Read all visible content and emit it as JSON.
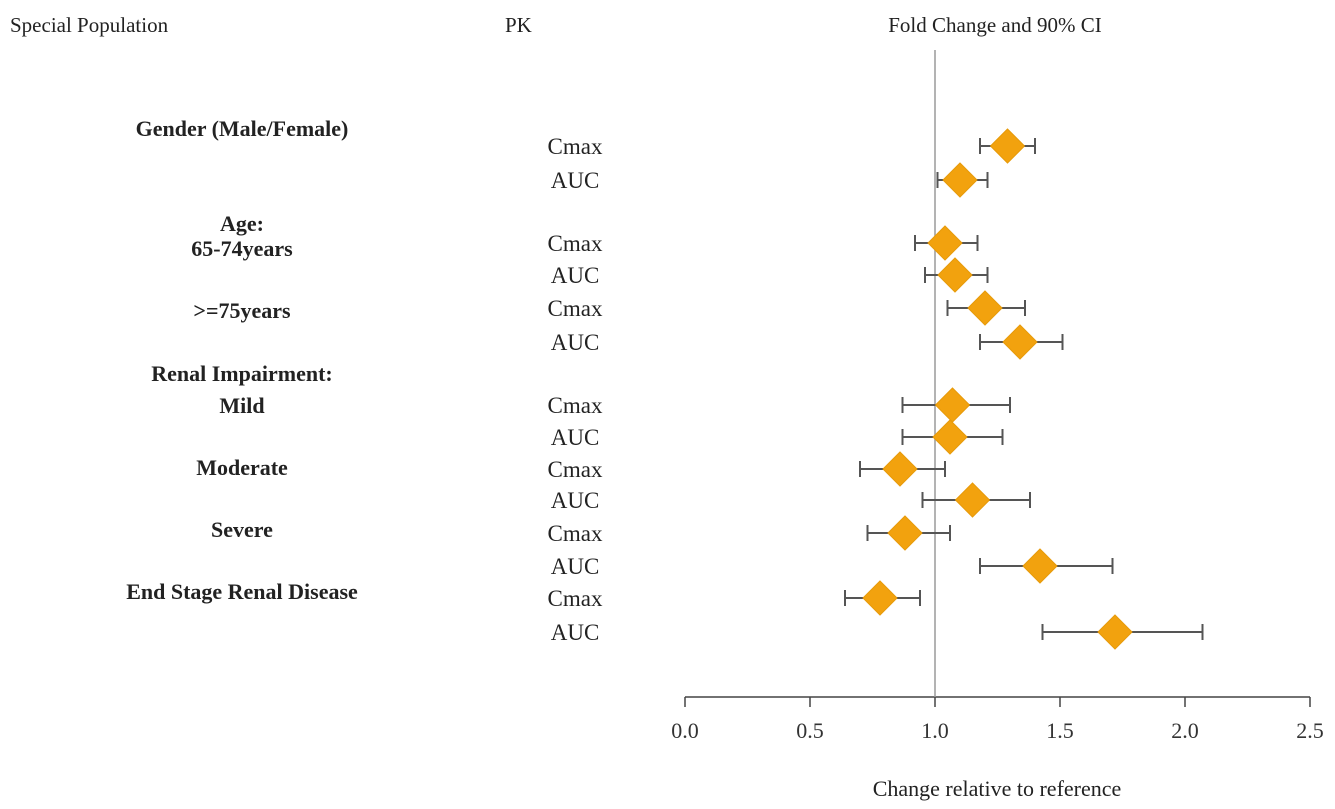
{
  "chart_data": {
    "type": "forest",
    "headers": {
      "group": "Special Population",
      "pk": "PK",
      "ci": "Fold Change and 90% CI"
    },
    "xlabel": "Change relative to reference",
    "xlim": [
      0.0,
      2.5
    ],
    "xticks": [
      "0.0",
      "0.5",
      "1.0",
      "1.5",
      "2.0",
      "2.5"
    ],
    "reference_line": 1.0,
    "marker_color": "#F2A20E",
    "groups": [
      {
        "label": "Gender (Male/Female)"
      },
      {
        "label": "Age:"
      },
      {
        "label": "65-74years"
      },
      {
        "label": ">=75years"
      },
      {
        "label": "Renal Impairment:"
      },
      {
        "label": "Mild"
      },
      {
        "label": "Moderate"
      },
      {
        "label": "Severe"
      },
      {
        "label": "End Stage Renal Disease"
      }
    ],
    "rows": [
      {
        "pk": "Cmax",
        "estimate": 1.29,
        "lower": 1.18,
        "upper": 1.4
      },
      {
        "pk": "AUC",
        "estimate": 1.1,
        "lower": 1.01,
        "upper": 1.21
      },
      {
        "pk": "Cmax",
        "estimate": 1.04,
        "lower": 0.92,
        "upper": 1.17
      },
      {
        "pk": "AUC",
        "estimate": 1.08,
        "lower": 0.96,
        "upper": 1.21
      },
      {
        "pk": "Cmax",
        "estimate": 1.2,
        "lower": 1.05,
        "upper": 1.36
      },
      {
        "pk": "AUC",
        "estimate": 1.34,
        "lower": 1.18,
        "upper": 1.51
      },
      {
        "pk": "Cmax",
        "estimate": 1.07,
        "lower": 0.87,
        "upper": 1.3
      },
      {
        "pk": "AUC",
        "estimate": 1.06,
        "lower": 0.87,
        "upper": 1.27
      },
      {
        "pk": "Cmax",
        "estimate": 0.86,
        "lower": 0.7,
        "upper": 1.04
      },
      {
        "pk": "AUC",
        "estimate": 1.15,
        "lower": 0.95,
        "upper": 1.38
      },
      {
        "pk": "Cmax",
        "estimate": 0.88,
        "lower": 0.73,
        "upper": 1.06
      },
      {
        "pk": "AUC",
        "estimate": 1.42,
        "lower": 1.18,
        "upper": 1.71
      },
      {
        "pk": "Cmax",
        "estimate": 0.78,
        "lower": 0.64,
        "upper": 0.94
      },
      {
        "pk": "AUC",
        "estimate": 1.72,
        "lower": 1.43,
        "upper": 2.07
      }
    ]
  }
}
